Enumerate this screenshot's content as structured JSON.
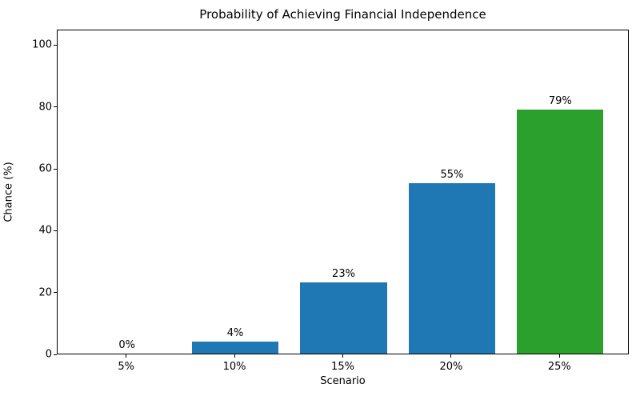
{
  "chart_data": {
    "type": "bar",
    "title": "Probability of Achieving Financial Independence",
    "xlabel": "Scenario",
    "ylabel": "Chance (%)",
    "categories": [
      "5%",
      "10%",
      "15%",
      "20%",
      "25%"
    ],
    "values": [
      0,
      4,
      23,
      55,
      79
    ],
    "bar_labels": [
      "0%",
      "4%",
      "23%",
      "55%",
      "79%"
    ],
    "bar_colors": [
      "#1f77b4",
      "#1f77b4",
      "#1f77b4",
      "#1f77b4",
      "#2ca02c"
    ],
    "ylim": [
      0,
      105
    ],
    "yticks": [
      0,
      20,
      40,
      60,
      80,
      100
    ],
    "grid": false,
    "legend": null,
    "background_color": "#ffffff",
    "spine_color": "#000000"
  }
}
